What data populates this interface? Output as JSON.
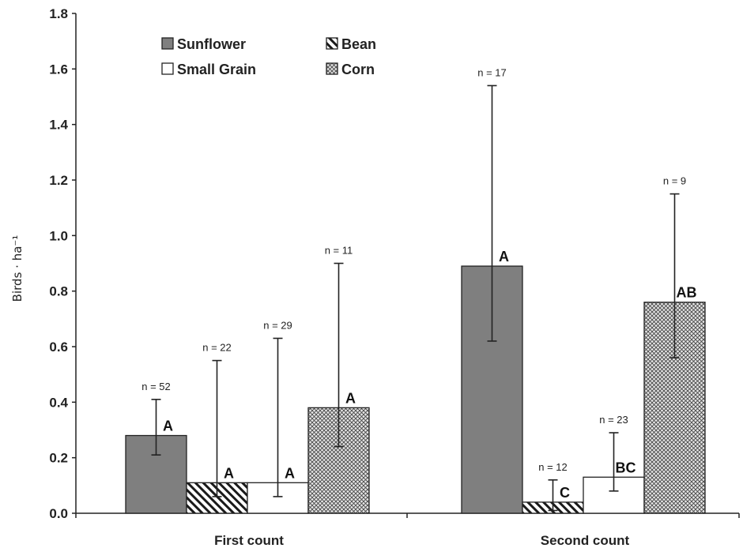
{
  "chart_data": {
    "type": "bar",
    "ylabel": "Birds · ha⁻¹",
    "ylim": [
      0,
      1.8
    ],
    "yticks": [
      "0.0",
      "0.2",
      "0.4",
      "0.6",
      "0.8",
      "1.0",
      "1.2",
      "1.4",
      "1.6",
      "1.8"
    ],
    "categories": [
      "First count",
      "Second count"
    ],
    "legend_position": "top-left",
    "series": [
      {
        "name": "Sunflower",
        "fill": "solid-gray",
        "color": "#7f7f7f",
        "values": [
          0.28,
          0.89
        ],
        "err_low": [
          0.21,
          0.62
        ],
        "err_high": [
          0.41,
          1.54
        ],
        "n": [
          "n = 52",
          "n = 17"
        ],
        "group": [
          "A",
          "A"
        ]
      },
      {
        "name": "Bean",
        "fill": "diagonal-hatch",
        "color": "#222222",
        "values": [
          0.11,
          0.04
        ],
        "err_low": [
          0.06,
          0.01
        ],
        "err_high": [
          0.55,
          0.12
        ],
        "n": [
          "n = 22",
          "n = 12"
        ],
        "group": [
          "A",
          "C"
        ]
      },
      {
        "name": "Small Grain",
        "fill": "white",
        "color": "#ffffff",
        "values": [
          0.11,
          0.13
        ],
        "err_low": [
          0.06,
          0.08
        ],
        "err_high": [
          0.63,
          0.29
        ],
        "n": [
          "n = 29",
          "n = 23"
        ],
        "group": [
          "A",
          "BC"
        ]
      },
      {
        "name": "Corn",
        "fill": "crosshatch",
        "color": "#555555",
        "values": [
          0.38,
          0.76
        ],
        "err_low": [
          0.24,
          0.56
        ],
        "err_high": [
          0.9,
          1.15
        ],
        "n": [
          "n = 11",
          "n = 9"
        ],
        "group": [
          "A",
          "AB"
        ]
      }
    ]
  }
}
